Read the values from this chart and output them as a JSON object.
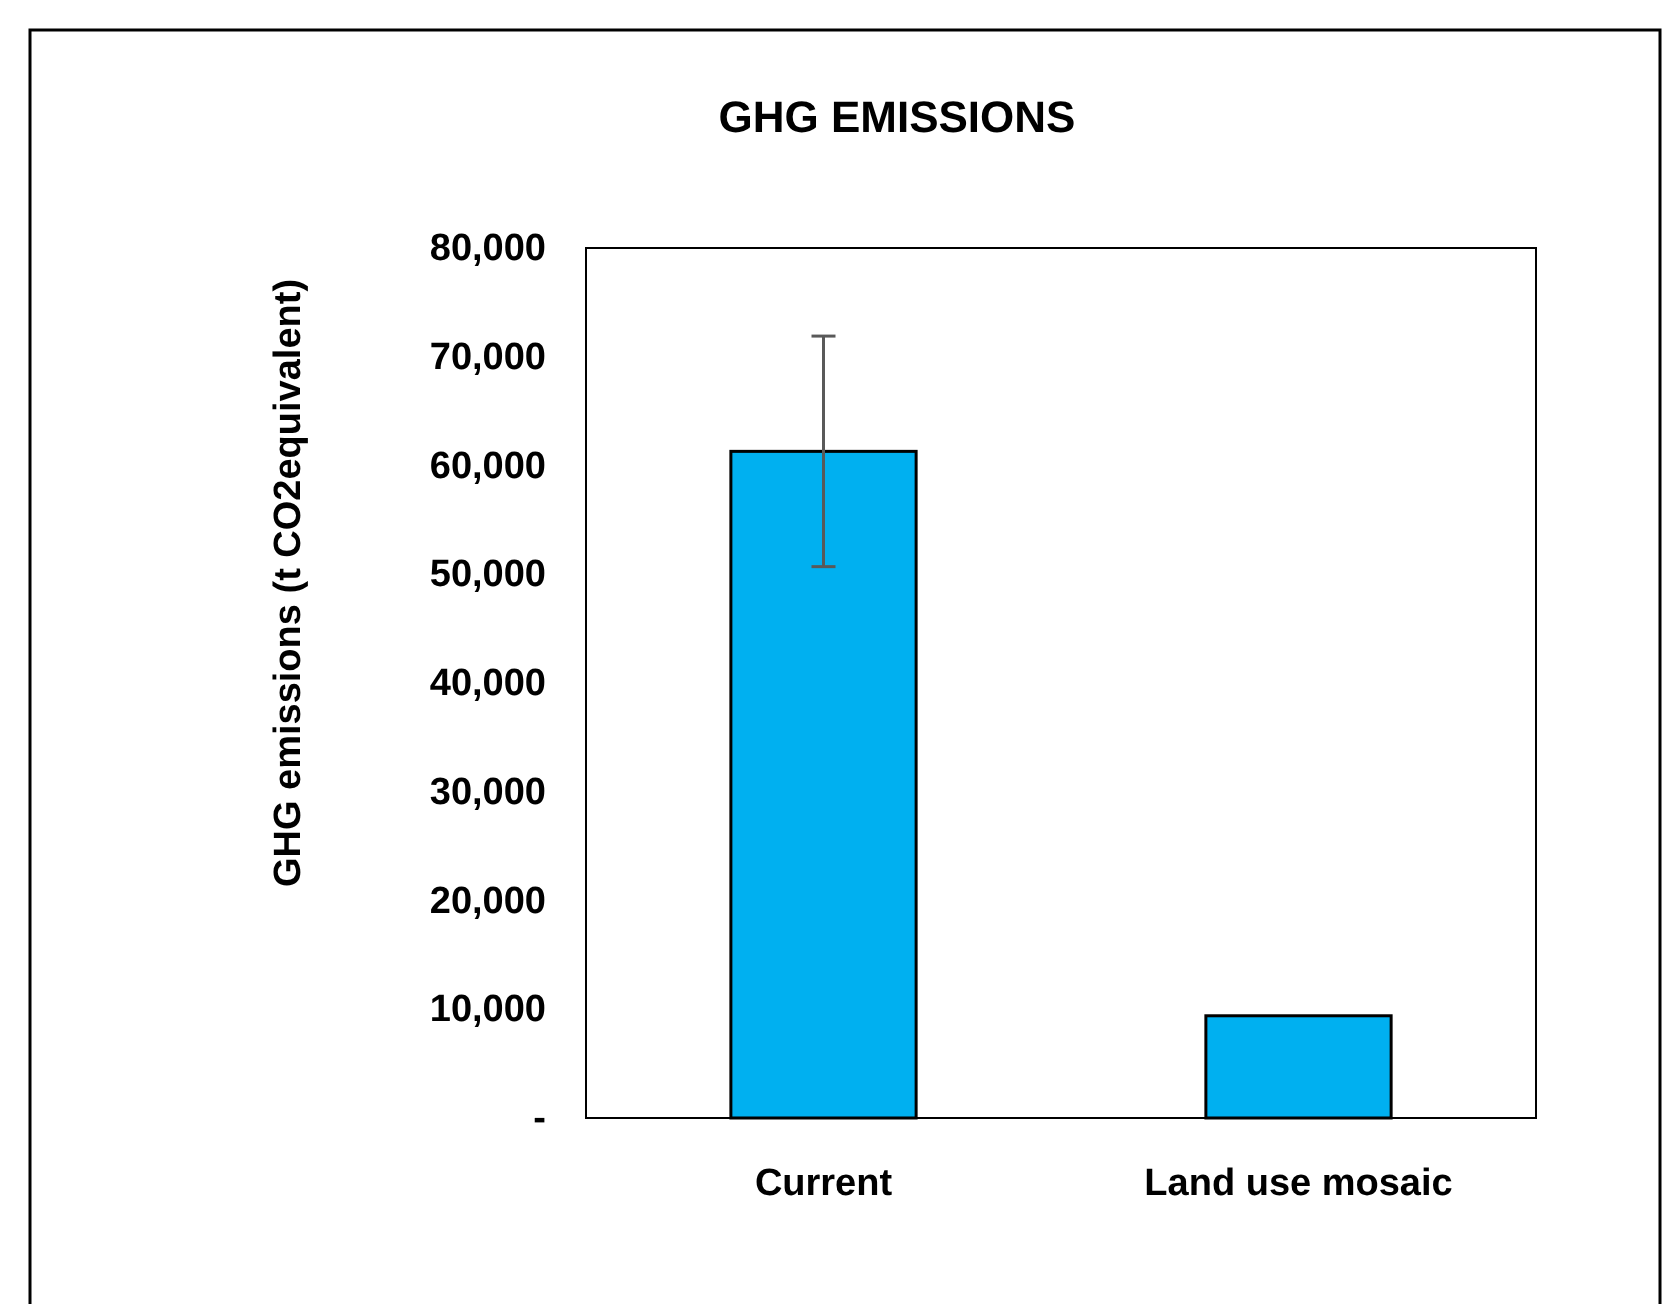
{
  "chart_data": {
    "type": "bar",
    "title": "GHG EMISSIONS",
    "ylabel": "GHG emissions (t CO2equivalent)",
    "categories": [
      "Current",
      "Land use mosaic"
    ],
    "values": [
      61300,
      9400
    ],
    "errors": [
      10600,
      null
    ],
    "color": "#00b0f0",
    "ylim": [
      0,
      80000
    ],
    "yticks": [
      {
        "value": 0,
        "label": "-"
      },
      {
        "value": 10000,
        "label": "10,000"
      },
      {
        "value": 20000,
        "label": "20,000"
      },
      {
        "value": 30000,
        "label": "30,000"
      },
      {
        "value": 40000,
        "label": "40,000"
      },
      {
        "value": 50000,
        "label": "50,000"
      },
      {
        "value": 60000,
        "label": "60,000"
      },
      {
        "value": 70000,
        "label": "70,000"
      },
      {
        "value": 80000,
        "label": "80,000"
      }
    ],
    "grid": false
  }
}
